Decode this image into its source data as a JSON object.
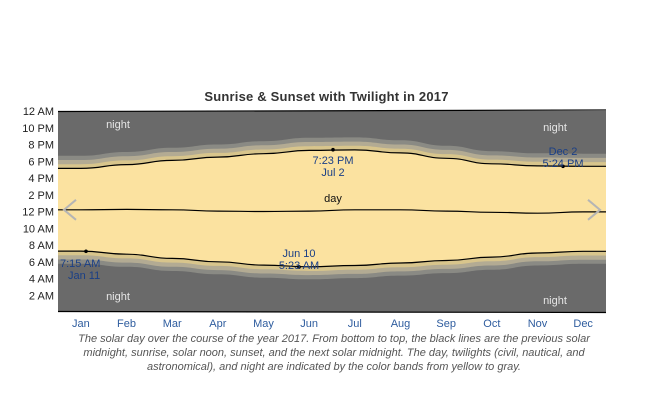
{
  "chart_data": {
    "type": "area",
    "title": "Sunrise & Sunset with Twilight in 2017",
    "x": [
      "Jan",
      "Feb",
      "Mar",
      "Apr",
      "May",
      "Jun",
      "Jul",
      "Aug",
      "Sep",
      "Oct",
      "Nov",
      "Dec"
    ],
    "y_ticks": [
      "12 AM",
      "10 PM",
      "8 PM",
      "6 PM",
      "4 PM",
      "2 PM",
      "12 PM",
      "10 AM",
      "8 AM",
      "6 AM",
      "4 AM",
      "2 AM"
    ],
    "ylim": [
      0,
      24
    ],
    "y_reversed": true,
    "series": [
      {
        "name": "sunrise",
        "values": [
          7.27,
          6.9,
          6.4,
          6.0,
          5.6,
          5.4,
          5.55,
          5.85,
          6.15,
          6.55,
          7.05,
          7.25
        ]
      },
      {
        "name": "solar noon",
        "values": [
          12.2,
          12.25,
          12.2,
          12.05,
          12.0,
          12.05,
          12.2,
          12.2,
          12.05,
          11.9,
          11.8,
          11.95
        ]
      },
      {
        "name": "sunset",
        "values": [
          17.15,
          17.6,
          18.1,
          18.5,
          18.9,
          19.3,
          19.35,
          19.0,
          18.35,
          17.7,
          17.45,
          17.4
        ]
      }
    ],
    "annotations": [
      {
        "label": "7:15 AM",
        "label2": "Jan 11",
        "x": "Jan",
        "y": 7.25
      },
      {
        "label": "Jun 10",
        "label2": "5:23 AM",
        "x": "Jun",
        "y": 5.38
      },
      {
        "label": "7:23 PM",
        "label2": "Jul 2",
        "x": "Jul",
        "y": 19.38
      },
      {
        "label": "Dec 2",
        "label2": "5:24 PM",
        "x": "Dec",
        "y": 17.4
      }
    ],
    "band_labels": {
      "night": "night",
      "day": "day"
    },
    "colors": {
      "night": "#6a6a6a",
      "astronomical": "#8a8a84",
      "nautical": "#b3ab93",
      "civil": "#d8c58c",
      "day": "#fbe2a0",
      "lines": "#000000"
    }
  },
  "caption": "The solar day over the course of the year 2017. From bottom to top, the black lines are the previous solar midnight, sunrise, solar noon, sunset, and the next solar midnight. The day, twilights (civil, nautical, and astronomical), and night are indicated by the color bands from yellow to gray."
}
